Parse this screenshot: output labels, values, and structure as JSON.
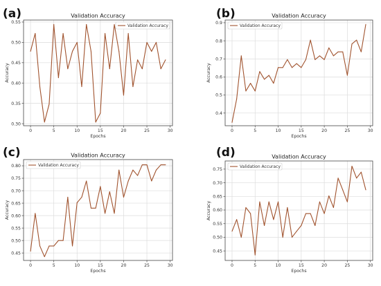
{
  "panel_labels": [
    "(a)",
    "(b)",
    "(c)",
    "(d)"
  ],
  "colors": {
    "line": "#a0522d",
    "grid": "#dcdcdc",
    "axis": "#444444"
  },
  "chart_data": [
    {
      "type": "line",
      "title": "Validation Accuracy",
      "xlabel": "Epochs",
      "ylabel": "Accuracy",
      "xlim": [
        -1.5,
        30.5
      ],
      "ylim": [
        0.295,
        0.555
      ],
      "xticks": [
        0,
        5,
        10,
        15,
        20,
        25,
        30
      ],
      "yticks": [
        0.3,
        0.35,
        0.4,
        0.45,
        0.5,
        0.55
      ],
      "ytick_labels": [
        "0.30",
        "0.35",
        "0.40",
        "0.45",
        "0.50",
        "0.55"
      ],
      "grid": true,
      "legend_position": "top-right",
      "series": [
        {
          "name": "Validation Accuracy",
          "x": [
            0,
            1,
            2,
            3,
            4,
            5,
            6,
            7,
            8,
            9,
            10,
            11,
            12,
            13,
            14,
            15,
            16,
            17,
            18,
            19,
            20,
            21,
            22,
            23,
            24,
            25,
            26,
            27,
            28,
            29
          ],
          "y": [
            0.478,
            0.522,
            0.391,
            0.304,
            0.348,
            0.544,
            0.413,
            0.522,
            0.435,
            0.478,
            0.5,
            0.391,
            0.544,
            0.478,
            0.304,
            0.326,
            0.522,
            0.435,
            0.544,
            0.478,
            0.37,
            0.522,
            0.391,
            0.457,
            0.435,
            0.5,
            0.478,
            0.5,
            0.435,
            0.457
          ]
        }
      ]
    },
    {
      "type": "line",
      "title": "Validation Accuracy",
      "xlabel": "Epochs",
      "ylabel": "Accuracy",
      "xlim": [
        -1.5,
        30.5
      ],
      "ylim": [
        0.33,
        0.915
      ],
      "xticks": [
        0,
        5,
        10,
        15,
        20,
        25,
        30
      ],
      "yticks": [
        0.4,
        0.5,
        0.6,
        0.7,
        0.8,
        0.9
      ],
      "ytick_labels": [
        "0.4",
        "0.5",
        "0.6",
        "0.7",
        "0.8",
        "0.9"
      ],
      "grid": true,
      "legend_position": "top-left",
      "series": [
        {
          "name": "Validation Accuracy",
          "x": [
            0,
            1,
            2,
            3,
            4,
            5,
            6,
            7,
            8,
            9,
            10,
            11,
            12,
            13,
            14,
            15,
            16,
            17,
            18,
            19,
            20,
            21,
            22,
            23,
            24,
            25,
            26,
            27,
            28,
            29
          ],
          "y": [
            0.348,
            0.478,
            0.717,
            0.522,
            0.565,
            0.522,
            0.63,
            0.587,
            0.609,
            0.565,
            0.652,
            0.652,
            0.696,
            0.652,
            0.674,
            0.652,
            0.696,
            0.804,
            0.696,
            0.717,
            0.696,
            0.761,
            0.717,
            0.739,
            0.739,
            0.609,
            0.783,
            0.804,
            0.739,
            0.891
          ]
        }
      ]
    },
    {
      "type": "line",
      "title": "Validation Accuracy",
      "xlabel": "Epochs",
      "ylabel": "Accuracy",
      "xlim": [
        -1.5,
        30.5
      ],
      "ylim": [
        0.42,
        0.825
      ],
      "xticks": [
        0,
        5,
        10,
        15,
        20,
        25,
        30
      ],
      "yticks": [
        0.45,
        0.5,
        0.55,
        0.6,
        0.65,
        0.7,
        0.75,
        0.8
      ],
      "ytick_labels": [
        "0.45",
        "0.50",
        "0.55",
        "0.60",
        "0.65",
        "0.70",
        "0.75",
        "0.80"
      ],
      "grid": true,
      "legend_position": "top-left",
      "series": [
        {
          "name": "Validation Accuracy",
          "x": [
            0,
            1,
            2,
            3,
            4,
            5,
            6,
            7,
            8,
            9,
            10,
            11,
            12,
            13,
            14,
            15,
            16,
            17,
            18,
            19,
            20,
            21,
            22,
            23,
            24,
            25,
            26,
            27,
            28,
            29
          ],
          "y": [
            0.457,
            0.609,
            0.478,
            0.435,
            0.478,
            0.478,
            0.5,
            0.5,
            0.674,
            0.478,
            0.652,
            0.674,
            0.739,
            0.63,
            0.63,
            0.717,
            0.609,
            0.696,
            0.609,
            0.783,
            0.674,
            0.739,
            0.783,
            0.761,
            0.804,
            0.804,
            0.739,
            0.783,
            0.804,
            0.804
          ]
        }
      ]
    },
    {
      "type": "line",
      "title": "Validation Accuracy",
      "xlabel": "Epochs",
      "ylabel": "Accuracy",
      "xlim": [
        -1.5,
        30.5
      ],
      "ylim": [
        0.415,
        0.78
      ],
      "xticks": [
        0,
        5,
        10,
        15,
        20,
        25,
        30
      ],
      "yticks": [
        0.45,
        0.5,
        0.55,
        0.6,
        0.65,
        0.7,
        0.75
      ],
      "ytick_labels": [
        "0.45",
        "0.50",
        "0.55",
        "0.60",
        "0.65",
        "0.70",
        "0.75"
      ],
      "grid": true,
      "legend_position": "top-left",
      "series": [
        {
          "name": "Validation Accuracy",
          "x": [
            0,
            1,
            2,
            3,
            4,
            5,
            6,
            7,
            8,
            9,
            10,
            11,
            12,
            13,
            14,
            15,
            16,
            17,
            18,
            19,
            20,
            21,
            22,
            23,
            24,
            25,
            26,
            27,
            28,
            29
          ],
          "y": [
            0.522,
            0.565,
            0.5,
            0.609,
            0.587,
            0.435,
            0.63,
            0.543,
            0.63,
            0.565,
            0.63,
            0.5,
            0.609,
            0.5,
            0.522,
            0.543,
            0.587,
            0.587,
            0.543,
            0.63,
            0.587,
            0.652,
            0.609,
            0.717,
            0.674,
            0.63,
            0.761,
            0.717,
            0.739,
            0.674
          ]
        }
      ]
    }
  ]
}
